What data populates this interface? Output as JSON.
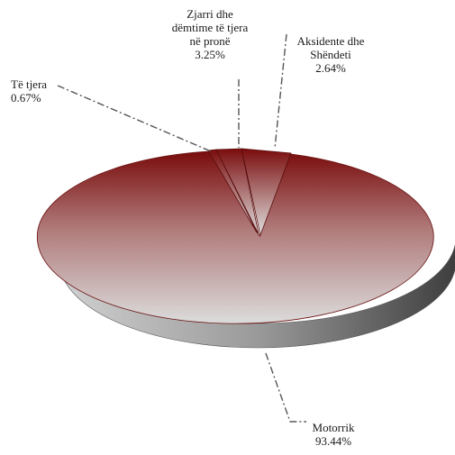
{
  "chart_data": {
    "type": "pie",
    "title": "",
    "slices": [
      {
        "label": "Motorrik",
        "value": 93.44,
        "value_text": "93.44%"
      },
      {
        "label": "Të tjera",
        "value": 0.67,
        "value_text": "0.67%"
      },
      {
        "label": "Zjarri dhe dëmtime të tjera në pronë",
        "label_lines": [
          "Zjarri dhe",
          "dëmtime të tjera",
          "në pronë"
        ],
        "value": 3.25,
        "value_text": "3.25%"
      },
      {
        "label": "Aksidente dhe Shëndeti",
        "label_lines": [
          "Aksidente dhe",
          "Shëndeti"
        ],
        "value": 2.64,
        "value_text": "2.64%"
      }
    ],
    "style": "3d-exploded",
    "colors": {
      "top_dark": "#7a0c0c",
      "top_light": "#d6d6d6",
      "side_light": "#c8c8c8",
      "side_dark": "#4a4a4a",
      "leader": "#555555"
    }
  }
}
